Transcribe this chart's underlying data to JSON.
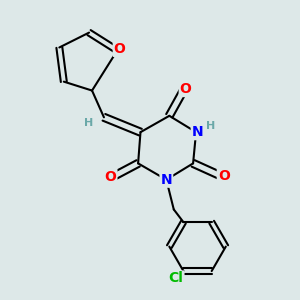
{
  "background_color": "#dde8e8",
  "bond_color": "#000000",
  "atom_colors": {
    "O": "#ff0000",
    "N": "#0000ff",
    "Cl": "#00bb00",
    "H": "#6aa8a8",
    "C": "#000000"
  },
  "font_size": 9,
  "figsize": [
    3.0,
    3.0
  ],
  "dpi": 100
}
